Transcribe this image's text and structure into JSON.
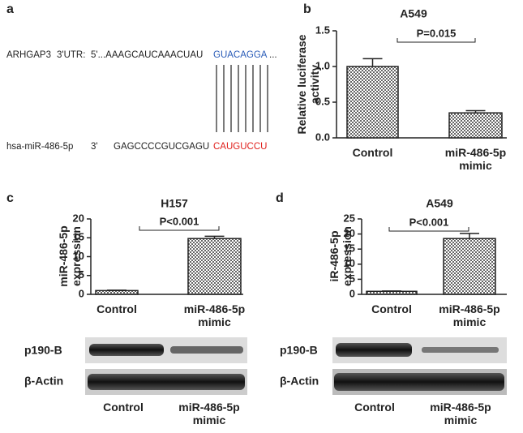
{
  "panel_a": {
    "letter": "a",
    "target_name": "ARHGAP3",
    "target_region": "3'UTR:",
    "target_seq": "5'...AAAGCAUCAAACUAU",
    "target_site": "GUACAGGA",
    "target_end": "...",
    "mirna_name": "hsa-miR-486-5p",
    "mirna_end": "3'",
    "mirna_seq": "GAGCCCCGUCGAGU",
    "mirna_seed": "CAUGUCCU"
  },
  "chart_data": [
    {
      "type": "bar",
      "letter": "b",
      "title": "A549",
      "y_label": "Relative luciferase activity",
      "categories": [
        "Control",
        "miR-486-5p mimic"
      ],
      "values": [
        1.0,
        0.35
      ],
      "errors": [
        0.11,
        0.03
      ],
      "color": "#666666",
      "ylim": [
        0,
        1.5
      ],
      "yticks": [
        {
          "value": 0,
          "label": "0.0"
        },
        {
          "value": 0.5,
          "label": "0.5"
        },
        {
          "value": 1,
          "label": "1.0"
        },
        {
          "value": 1.5,
          "label": "1.5"
        }
      ],
      "annotation": "P=0.015"
    },
    {
      "type": "bar",
      "letter": "c",
      "title": "H157",
      "y_label": "miR-486-5p expression",
      "categories": [
        "Control",
        "miR-486-5p mimic"
      ],
      "values": [
        1,
        14.8
      ],
      "errors": [
        0.1,
        0.6
      ],
      "color": "#666666",
      "ylim": [
        0,
        20
      ],
      "yticks": [
        0,
        5,
        10,
        15,
        20
      ],
      "annotation": "P<0.001"
    },
    {
      "type": "bar",
      "letter": "d",
      "title": "A549",
      "y_label": "iR-486-5p expression",
      "categories": [
        "Control",
        "miR-486-5p mimic"
      ],
      "values": [
        1,
        18.5
      ],
      "errors": [
        0.1,
        1.7
      ],
      "color": "#666666",
      "ylim": [
        0,
        25
      ],
      "yticks": [
        0,
        5,
        10,
        15,
        20,
        25
      ],
      "annotation": "P<0.001"
    }
  ],
  "blots": [
    {
      "rows": [
        "p190-B",
        "β-Actin"
      ],
      "lanes": [
        "Control",
        "miR-486-5p mimic"
      ]
    },
    {
      "rows": [
        "p190-B",
        "β-Actin"
      ],
      "lanes": [
        "Control",
        "miR-486-5p mimic"
      ]
    }
  ]
}
